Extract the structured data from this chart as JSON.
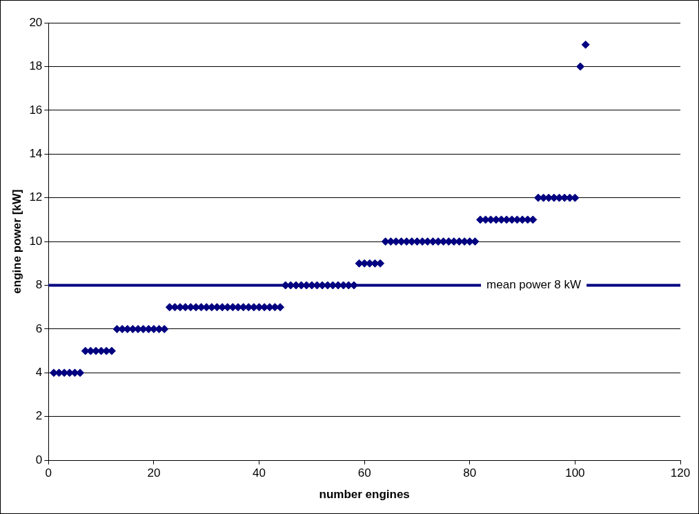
{
  "chart_data": {
    "type": "scatter",
    "xlabel": "number engines",
    "ylabel": "engine power [kW]",
    "x": [
      1,
      2,
      3,
      4,
      5,
      6,
      7,
      8,
      9,
      10,
      11,
      12,
      13,
      14,
      15,
      16,
      17,
      18,
      19,
      20,
      21,
      22,
      23,
      24,
      25,
      26,
      27,
      28,
      29,
      30,
      31,
      32,
      33,
      34,
      35,
      36,
      37,
      38,
      39,
      40,
      41,
      42,
      43,
      44,
      45,
      46,
      47,
      48,
      49,
      50,
      51,
      52,
      53,
      54,
      55,
      56,
      57,
      58,
      59,
      60,
      61,
      62,
      63,
      64,
      65,
      66,
      67,
      68,
      69,
      70,
      71,
      72,
      73,
      74,
      75,
      76,
      77,
      78,
      79,
      80,
      81,
      82,
      83,
      84,
      85,
      86,
      87,
      88,
      89,
      90,
      91,
      92,
      93,
      94,
      95,
      96,
      97,
      98,
      99,
      100,
      101,
      102
    ],
    "series": [
      {
        "color": "#000080",
        "values": [
          4,
          4,
          4,
          4,
          4,
          4,
          5,
          5,
          5,
          5,
          5,
          5,
          6,
          6,
          6,
          6,
          6,
          6,
          6,
          6,
          6,
          6,
          7,
          7,
          7,
          7,
          7,
          7,
          7,
          7,
          7,
          7,
          7,
          7,
          7,
          7,
          7,
          7,
          7,
          7,
          7,
          7,
          7,
          7,
          8,
          8,
          8,
          8,
          8,
          8,
          8,
          8,
          8,
          8,
          8,
          8,
          8,
          8,
          9,
          9,
          9,
          9,
          9,
          10,
          10,
          10,
          10,
          10,
          10,
          10,
          10,
          10,
          10,
          10,
          10,
          10,
          10,
          10,
          10,
          10,
          10,
          11,
          11,
          11,
          11,
          11,
          11,
          11,
          11,
          11,
          11,
          11,
          12,
          12,
          12,
          12,
          12,
          12,
          12,
          12,
          18,
          19
        ]
      }
    ],
    "xlim": [
      0,
      120
    ],
    "xticks": [
      0,
      20,
      40,
      60,
      80,
      100,
      120
    ],
    "ylim": [
      0,
      20
    ],
    "yticks": [
      0,
      2,
      4,
      6,
      8,
      10,
      12,
      14,
      16,
      18,
      20
    ],
    "grid": "y",
    "legend": false,
    "marker": "diamond",
    "ref_lines": [
      {
        "axis": "y",
        "value": 8,
        "label": "mean power 8 kW",
        "color": "#000080"
      }
    ]
  }
}
